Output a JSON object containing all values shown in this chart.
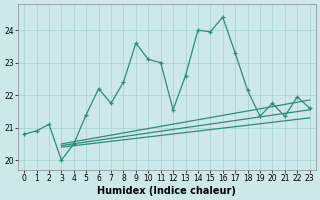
{
  "xlabel": "Humidex (Indice chaleur)",
  "x_values": [
    0,
    1,
    2,
    3,
    4,
    5,
    6,
    7,
    8,
    9,
    10,
    11,
    12,
    13,
    14,
    15,
    16,
    17,
    18,
    19,
    20,
    21,
    22,
    23
  ],
  "main_line": [
    20.8,
    20.9,
    21.1,
    20.0,
    20.5,
    21.4,
    22.2,
    21.75,
    22.4,
    23.6,
    23.1,
    23.0,
    21.55,
    22.6,
    24.0,
    23.95,
    24.4,
    23.3,
    22.15,
    21.35,
    21.75,
    21.35,
    21.95,
    21.6
  ],
  "line2_x": [
    3,
    23
  ],
  "line2_y": [
    20.5,
    21.85
  ],
  "line3_x": [
    3,
    23
  ],
  "line3_y": [
    20.45,
    21.55
  ],
  "line4_x": [
    3,
    23
  ],
  "line4_y": [
    20.4,
    21.3
  ],
  "line_color": "#2d8b78",
  "background_color": "#cce8e8",
  "grid_color": "#b0d8d8",
  "ylim": [
    19.7,
    24.8
  ],
  "yticks": [
    20,
    21,
    22,
    23,
    24
  ],
  "xticks": [
    0,
    1,
    2,
    3,
    4,
    5,
    6,
    7,
    8,
    9,
    10,
    11,
    12,
    13,
    14,
    15,
    16,
    17,
    18,
    19,
    20,
    21,
    22,
    23
  ]
}
